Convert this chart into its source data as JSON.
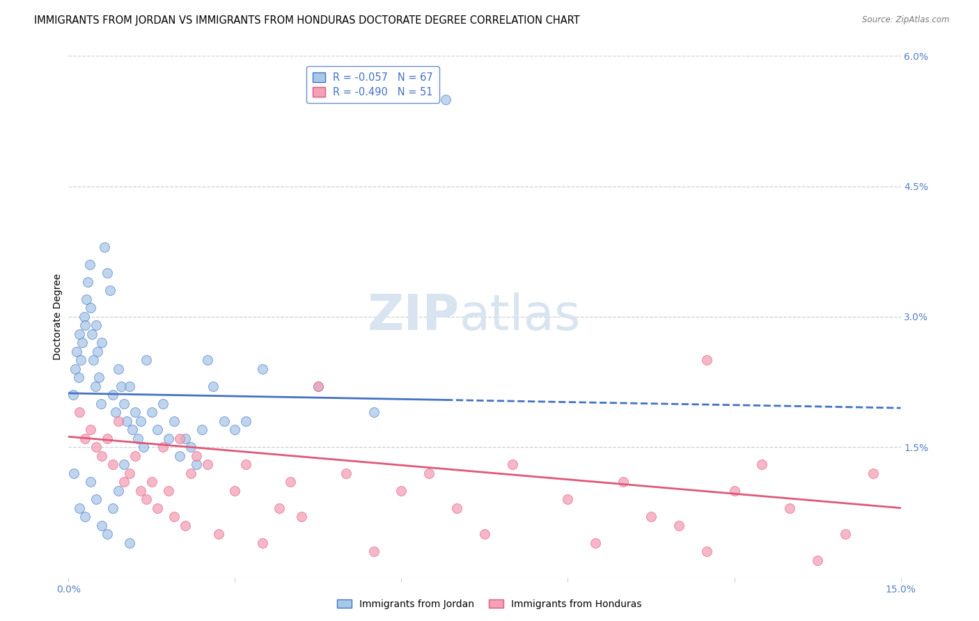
{
  "title": "IMMIGRANTS FROM JORDAN VS IMMIGRANTS FROM HONDURAS DOCTORATE DEGREE CORRELATION CHART",
  "source": "Source: ZipAtlas.com",
  "ylabel": "Doctorate Degree",
  "xlabel_ticks": [
    "0.0%",
    "",
    "",
    "",
    "",
    "15.0%"
  ],
  "xlabel_vals": [
    0.0,
    3.0,
    6.0,
    9.0,
    12.0,
    15.0
  ],
  "ylabel_ticks_right": [
    "6.0%",
    "4.5%",
    "3.0%",
    "1.5%",
    ""
  ],
  "ylabel_vals": [
    6.0,
    4.5,
    3.0,
    1.5,
    0.0
  ],
  "xlim": [
    0.0,
    15.0
  ],
  "ylim": [
    0.0,
    6.0
  ],
  "legend_jordan_r": "R = -0.057",
  "legend_jordan_n": "N = 67",
  "legend_honduras_r": "R = -0.490",
  "legend_honduras_n": "N = 51",
  "color_jordan": "#a8c8e8",
  "color_jordan_line": "#4472c4",
  "color_honduras": "#f4a0b8",
  "color_honduras_line": "#e05878",
  "color_axis_right": "#5580c8",
  "color_axis_bottom": "#5580c8",
  "background": "#ffffff",
  "watermark_zip": "ZIP",
  "watermark_atlas": "atlas",
  "jordan_scatter_x": [
    0.08,
    0.12,
    0.15,
    0.18,
    0.2,
    0.22,
    0.25,
    0.28,
    0.3,
    0.32,
    0.35,
    0.38,
    0.4,
    0.42,
    0.45,
    0.48,
    0.5,
    0.52,
    0.55,
    0.58,
    0.6,
    0.65,
    0.7,
    0.75,
    0.8,
    0.85,
    0.9,
    0.95,
    1.0,
    1.05,
    1.1,
    1.15,
    1.2,
    1.25,
    1.3,
    1.35,
    1.4,
    1.5,
    1.6,
    1.7,
    1.8,
    1.9,
    2.0,
    2.1,
    2.2,
    2.3,
    2.4,
    2.5,
    2.6,
    2.8,
    3.0,
    3.2,
    3.5,
    4.5,
    5.5,
    6.8,
    0.1,
    0.2,
    0.3,
    0.4,
    0.5,
    0.6,
    0.7,
    0.8,
    0.9,
    1.0,
    1.1
  ],
  "jordan_scatter_y": [
    2.1,
    2.4,
    2.6,
    2.3,
    2.8,
    2.5,
    2.7,
    3.0,
    2.9,
    3.2,
    3.4,
    3.6,
    3.1,
    2.8,
    2.5,
    2.2,
    2.9,
    2.6,
    2.3,
    2.0,
    2.7,
    3.8,
    3.5,
    3.3,
    2.1,
    1.9,
    2.4,
    2.2,
    2.0,
    1.8,
    2.2,
    1.7,
    1.9,
    1.6,
    1.8,
    1.5,
    2.5,
    1.9,
    1.7,
    2.0,
    1.6,
    1.8,
    1.4,
    1.6,
    1.5,
    1.3,
    1.7,
    2.5,
    2.2,
    1.8,
    1.7,
    1.8,
    2.4,
    2.2,
    1.9,
    5.5,
    1.2,
    0.8,
    0.7,
    1.1,
    0.9,
    0.6,
    0.5,
    0.8,
    1.0,
    1.3,
    0.4
  ],
  "honduras_scatter_x": [
    0.2,
    0.3,
    0.4,
    0.5,
    0.6,
    0.7,
    0.8,
    0.9,
    1.0,
    1.1,
    1.2,
    1.3,
    1.4,
    1.5,
    1.6,
    1.7,
    1.8,
    1.9,
    2.0,
    2.1,
    2.2,
    2.3,
    2.5,
    2.7,
    3.0,
    3.2,
    3.5,
    3.8,
    4.0,
    4.2,
    4.5,
    5.0,
    5.5,
    6.0,
    6.5,
    7.0,
    7.5,
    8.0,
    9.0,
    9.5,
    10.0,
    10.5,
    11.0,
    11.5,
    12.0,
    13.0,
    13.5,
    14.0,
    14.5,
    11.5,
    12.5
  ],
  "honduras_scatter_y": [
    1.9,
    1.6,
    1.7,
    1.5,
    1.4,
    1.6,
    1.3,
    1.8,
    1.1,
    1.2,
    1.4,
    1.0,
    0.9,
    1.1,
    0.8,
    1.5,
    1.0,
    0.7,
    1.6,
    0.6,
    1.2,
    1.4,
    1.3,
    0.5,
    1.0,
    1.3,
    0.4,
    0.8,
    1.1,
    0.7,
    2.2,
    1.2,
    0.3,
    1.0,
    1.2,
    0.8,
    0.5,
    1.3,
    0.9,
    0.4,
    1.1,
    0.7,
    0.6,
    0.3,
    1.0,
    0.8,
    0.2,
    0.5,
    1.2,
    2.5,
    1.3
  ],
  "jordan_trend_x0": 0.0,
  "jordan_trend_y0": 2.12,
  "jordan_trend_x1": 15.0,
  "jordan_trend_y1": 1.95,
  "jordan_solid_end_x": 6.8,
  "honduras_trend_x0": 0.0,
  "honduras_trend_y0": 1.62,
  "honduras_trend_x1": 15.0,
  "honduras_trend_y1": 0.8,
  "grid_color": "#c8d0dc",
  "grid_linestyle": "--",
  "title_fontsize": 10.5,
  "axis_label_fontsize": 10,
  "tick_fontsize": 10,
  "watermark_fontsize_zip": 52,
  "watermark_fontsize_atlas": 52,
  "watermark_color": "#d8e4f0",
  "legend_fontsize": 10.5,
  "scatter_size": 100,
  "scatter_alpha": 0.75
}
